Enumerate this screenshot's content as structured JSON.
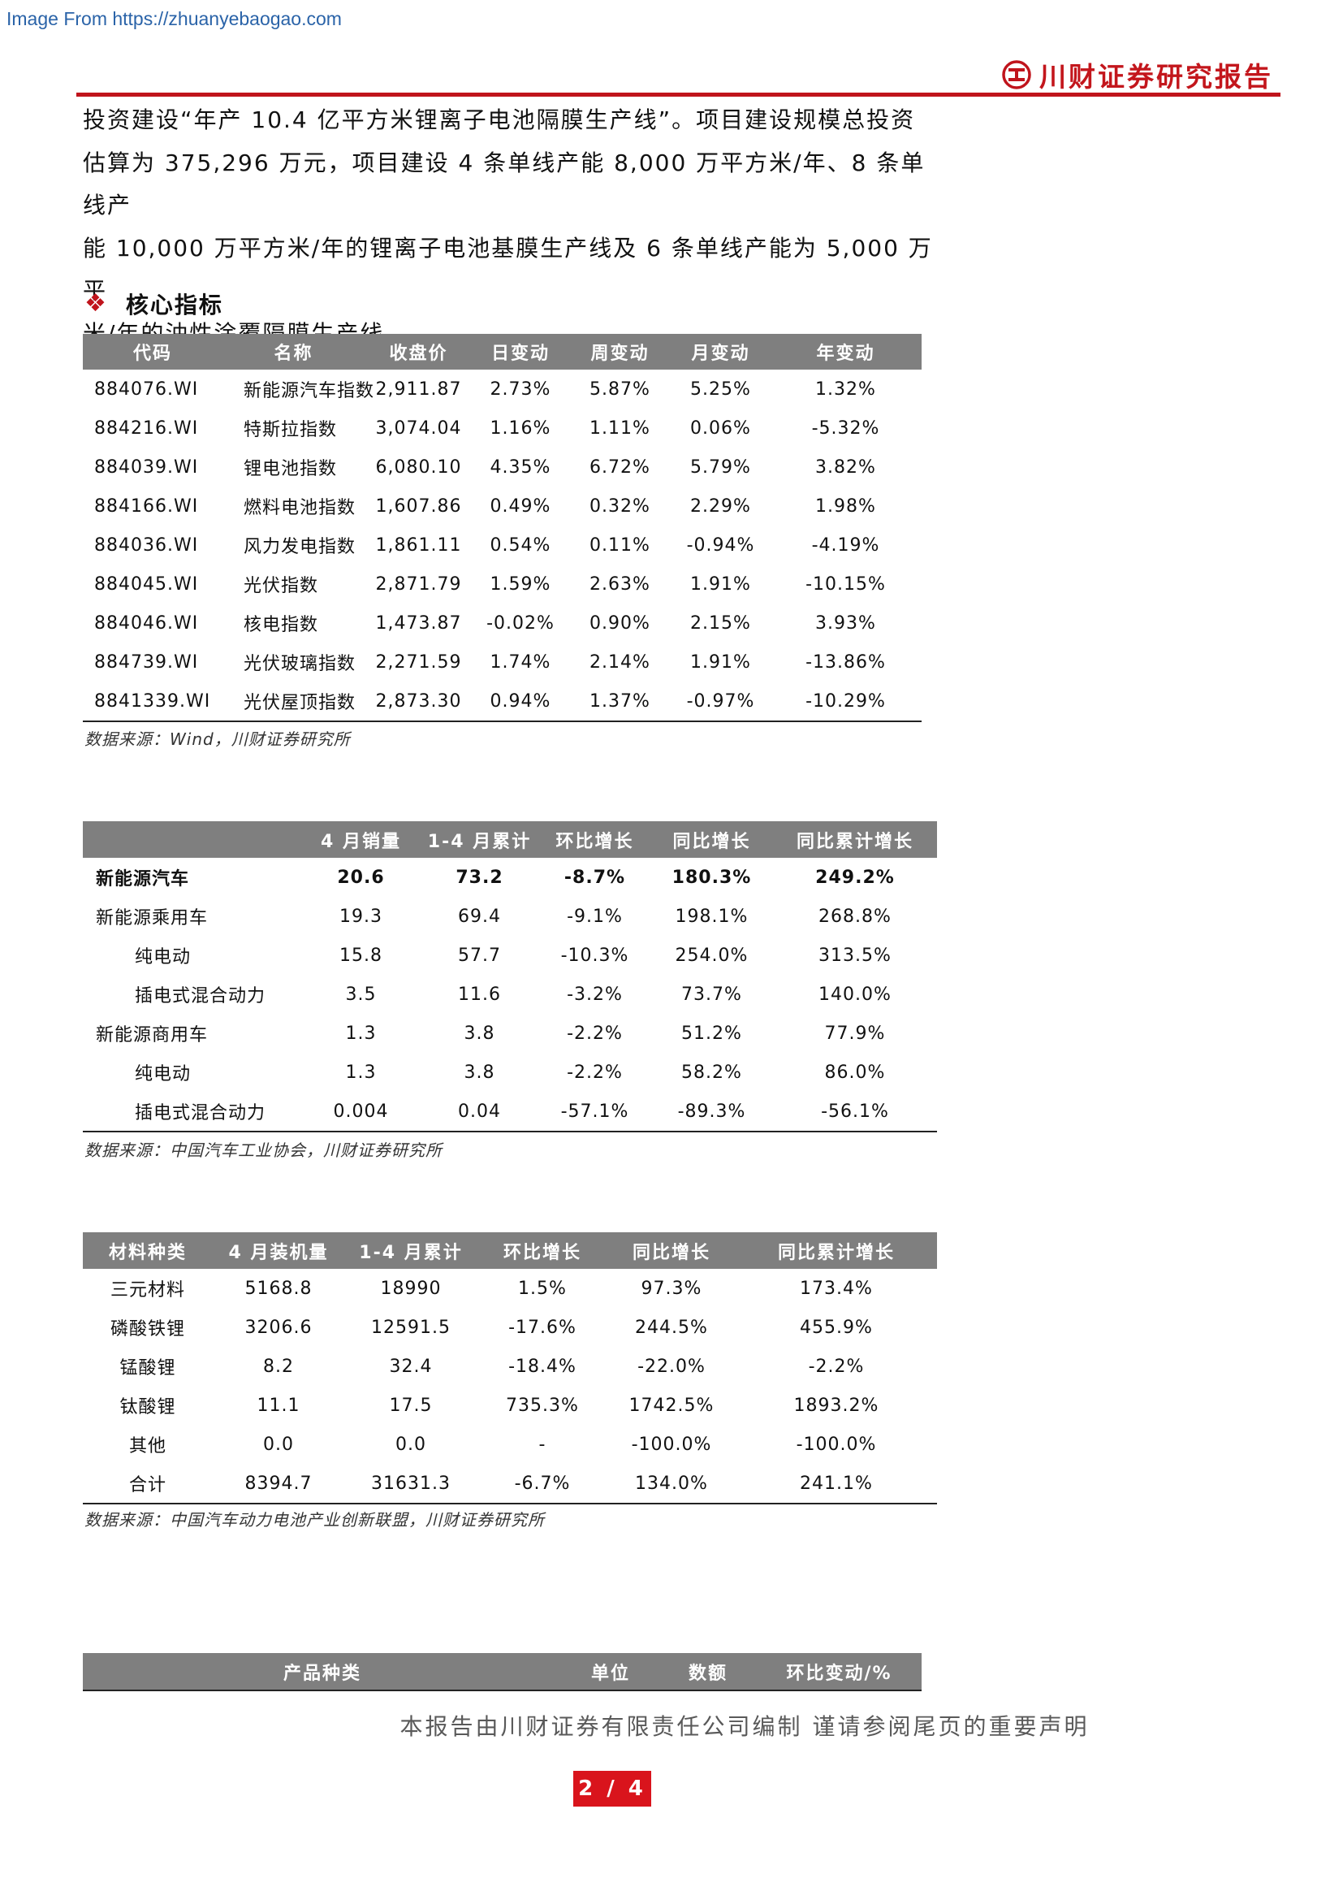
{
  "watermark": "Image From https://zhuanyebaogao.com",
  "brand": {
    "name": "川财证券研究报告",
    "logo_icon": "chuancai-logo-icon",
    "color": "#c0141c"
  },
  "intro_lines": [
    "投资建设“年产 10.4 亿平方米锂离子电池隔膜生产线”。项目建设规模总投资",
    "估算为 375,296 万元，项目建设 4 条单线产能 8,000 万平方米/年、8 条单线产",
    "能 10,000 万平方米/年的锂离子电池基膜生产线及 6 条单线产能为 5,000 万平",
    "米/年的油性涂覆隔膜生产线。"
  ],
  "section": {
    "icon": "diamond-bullet-icon",
    "title": "核心指标"
  },
  "table1": {
    "headers": [
      "代码",
      "名称",
      "收盘价",
      "日变动",
      "周变动",
      "月变动",
      "年变动"
    ],
    "rows": [
      [
        "884076.WI",
        "新能源汽车指数",
        "2,911.87",
        "2.73%",
        "5.87%",
        "5.25%",
        "1.32%"
      ],
      [
        "884216.WI",
        "特斯拉指数",
        "3,074.04",
        "1.16%",
        "1.11%",
        "0.06%",
        "-5.32%"
      ],
      [
        "884039.WI",
        "锂电池指数",
        "6,080.10",
        "4.35%",
        "6.72%",
        "5.79%",
        "3.82%"
      ],
      [
        "884166.WI",
        "燃料电池指数",
        "1,607.86",
        "0.49%",
        "0.32%",
        "2.29%",
        "1.98%"
      ],
      [
        "884036.WI",
        "风力发电指数",
        "1,861.11",
        "0.54%",
        "0.11%",
        "-0.94%",
        "-4.19%"
      ],
      [
        "884045.WI",
        "光伏指数",
        "2,871.79",
        "1.59%",
        "2.63%",
        "1.91%",
        "-10.15%"
      ],
      [
        "884046.WI",
        "核电指数",
        "1,473.87",
        "-0.02%",
        "0.90%",
        "2.15%",
        "3.93%"
      ],
      [
        "884739.WI",
        "光伏玻璃指数",
        "2,271.59",
        "1.74%",
        "2.14%",
        "1.91%",
        "-13.86%"
      ],
      [
        "8841339.WI",
        "光伏屋顶指数",
        "2,873.30",
        "0.94%",
        "1.37%",
        "-0.97%",
        "-10.29%"
      ]
    ],
    "source": "数据来源：Wind，川财证券研究所"
  },
  "table2": {
    "headers": [
      "",
      "4 月销量",
      "1-4 月累计",
      "环比增长",
      "同比增长",
      "同比累计增长"
    ],
    "rows": [
      [
        "新能源汽车",
        "20.6",
        "73.2",
        "-8.7%",
        "180.3%",
        "249.2%"
      ],
      [
        "新能源乘用车",
        "19.3",
        "69.4",
        "-9.1%",
        "198.1%",
        "268.8%"
      ],
      [
        "纯电动",
        "15.8",
        "57.7",
        "-10.3%",
        "254.0%",
        "313.5%"
      ],
      [
        "插电式混合动力",
        "3.5",
        "11.6",
        "-3.2%",
        "73.7%",
        "140.0%"
      ],
      [
        "新能源商用车",
        "1.3",
        "3.8",
        "-2.2%",
        "51.2%",
        "77.9%"
      ],
      [
        "纯电动",
        "1.3",
        "3.8",
        "-2.2%",
        "58.2%",
        "86.0%"
      ],
      [
        "插电式混合动力",
        "0.004",
        "0.04",
        "-57.1%",
        "-89.3%",
        "-56.1%"
      ]
    ],
    "source": "数据来源：中国汽车工业协会，川财证券研究所"
  },
  "table3": {
    "headers": [
      "材料种类",
      "4 月装机量",
      "1-4 月累计",
      "环比增长",
      "同比增长",
      "同比累计增长"
    ],
    "rows": [
      [
        "三元材料",
        "5168.8",
        "18990",
        "1.5%",
        "97.3%",
        "173.4%"
      ],
      [
        "磷酸铁锂",
        "3206.6",
        "12591.5",
        "-17.6%",
        "244.5%",
        "455.9%"
      ],
      [
        "锰酸锂",
        "8.2",
        "32.4",
        "-18.4%",
        "-22.0%",
        "-2.2%"
      ],
      [
        "钛酸锂",
        "11.1",
        "17.5",
        "735.3%",
        "1742.5%",
        "1893.2%"
      ],
      [
        "其他",
        "0.0",
        "0.0",
        "-",
        "-100.0%",
        "-100.0%"
      ],
      [
        "合计",
        "8394.7",
        "31631.3",
        "-6.7%",
        "134.0%",
        "241.1%"
      ]
    ],
    "source": "数据来源：中国汽车动力电池产业创新联盟，川财证券研究所"
  },
  "table4": {
    "headers": [
      "产品种类",
      "单位",
      "数额",
      "环比变动/%"
    ]
  },
  "footer": "本报告由川财证券有限责任公司编制  谨请参阅尾页的重要声明",
  "page_number": "2 / 4"
}
